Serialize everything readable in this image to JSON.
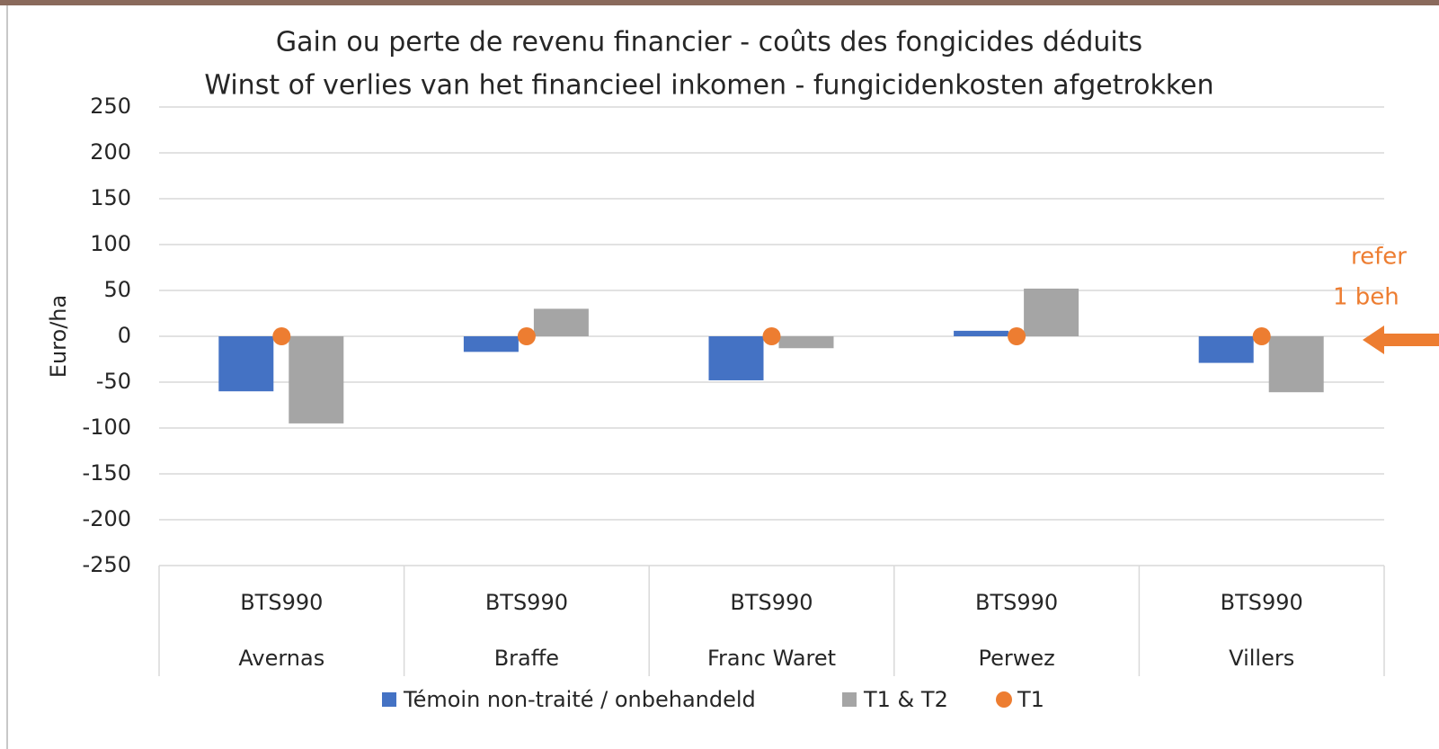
{
  "chart_data": {
    "type": "bar",
    "title": "Gain ou perte de revenu financier - coûts des fongicides déduits",
    "subtitle": "Winst of verlies van het financieel inkomen - fungicidenkosten afgetrokken",
    "y_label": "Euro/ha",
    "categories": [
      [
        "BTS990",
        "Avernas"
      ],
      [
        "BTS990",
        "Braffe"
      ],
      [
        "BTS990",
        "Franc Waret"
      ],
      [
        "BTS990",
        "Perwez"
      ],
      [
        "BTS990",
        "Villers"
      ]
    ],
    "series": [
      {
        "name": "Témoin non-traité / onbehandeld",
        "color": "#4472c4",
        "kind": "bar",
        "values": [
          -60,
          -17,
          -48,
          6,
          -29
        ]
      },
      {
        "name": "T1 & T2",
        "color": "#a5a5a5",
        "kind": "bar",
        "values": [
          -95,
          30,
          -13,
          52,
          -61
        ]
      },
      {
        "name": "T1",
        "color": "#ed7d31",
        "kind": "marker",
        "values": [
          0,
          0,
          0,
          0,
          0
        ]
      }
    ],
    "ylim": [
      -250,
      250
    ],
    "yticks": [
      -250,
      -200,
      -150,
      -100,
      -50,
      0,
      50,
      100,
      150,
      200,
      250
    ],
    "grid": true,
    "legend": "bottom",
    "annotations": [
      "refer",
      "1 beh"
    ],
    "annotation_color": "#ed7d31"
  }
}
